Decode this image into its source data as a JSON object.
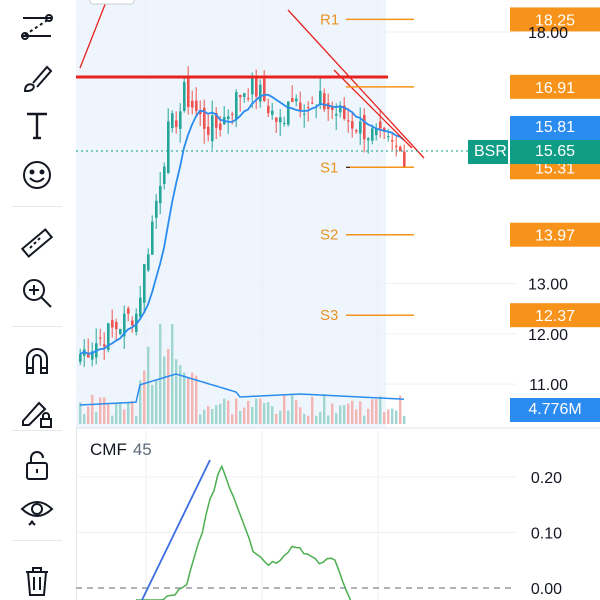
{
  "toolbar": {
    "tools": [
      {
        "icon": "trend-line-tools-icon",
        "label": ""
      },
      {
        "icon": "brush-icon",
        "label": ""
      },
      {
        "icon": "text-icon",
        "label": "T"
      },
      {
        "icon": "emoji-icon",
        "label": ""
      },
      {
        "icon": "ruler-icon",
        "label": ""
      },
      {
        "icon": "zoom-in-icon",
        "label": ""
      },
      {
        "icon": "magnet-icon",
        "label": ""
      },
      {
        "icon": "lock-draw-icon",
        "label": ""
      },
      {
        "icon": "lock-icon",
        "label": ""
      },
      {
        "icon": "eye-icon",
        "label": ""
      },
      {
        "icon": "trash-icon",
        "label": ""
      }
    ]
  },
  "price_axis": {
    "ticks": [
      {
        "label": "18.00",
        "value": 18.0
      },
      {
        "label": "13.00",
        "value": 13.0
      },
      {
        "label": "12.00",
        "value": 12.0
      },
      {
        "label": "11.00",
        "value": 11.0
      }
    ]
  },
  "levels": [
    {
      "name": "R1",
      "value": 18.25,
      "label": "18.25",
      "color": "#f7931a"
    },
    {
      "name": "",
      "value": 16.91,
      "label": "16.91",
      "color": "#f7931a"
    },
    {
      "name": "S1",
      "value": 15.31,
      "label": "15.31",
      "color": "#f7931a"
    },
    {
      "name": "S2",
      "value": 13.97,
      "label": "13.97",
      "color": "#f7931a"
    },
    {
      "name": "S3",
      "value": 12.37,
      "label": "12.37",
      "color": "#f7931a"
    }
  ],
  "price_tags": {
    "ma": {
      "label": "15.81",
      "color": "#2a8cf0"
    },
    "symbol": {
      "label": "BSR",
      "color": "#0f9d86"
    },
    "last": {
      "label": "15.65",
      "color": "#0f9d86"
    },
    "volume": {
      "label": "4.776M",
      "color": "#2a8cf0"
    }
  },
  "cmf": {
    "name": "CMF",
    "length": "45",
    "ticks": [
      {
        "label": "0.20",
        "value": 0.2
      },
      {
        "label": "0.10",
        "value": 0.1
      },
      {
        "label": "0.00",
        "value": 0.0
      }
    ]
  },
  "colors": {
    "up": "#26a69a",
    "down": "#ef5350",
    "ma": "#2a8cf0",
    "resistance": "#e8231f",
    "cmf": "#4caf50",
    "trend": "#3b6fe0"
  }
}
